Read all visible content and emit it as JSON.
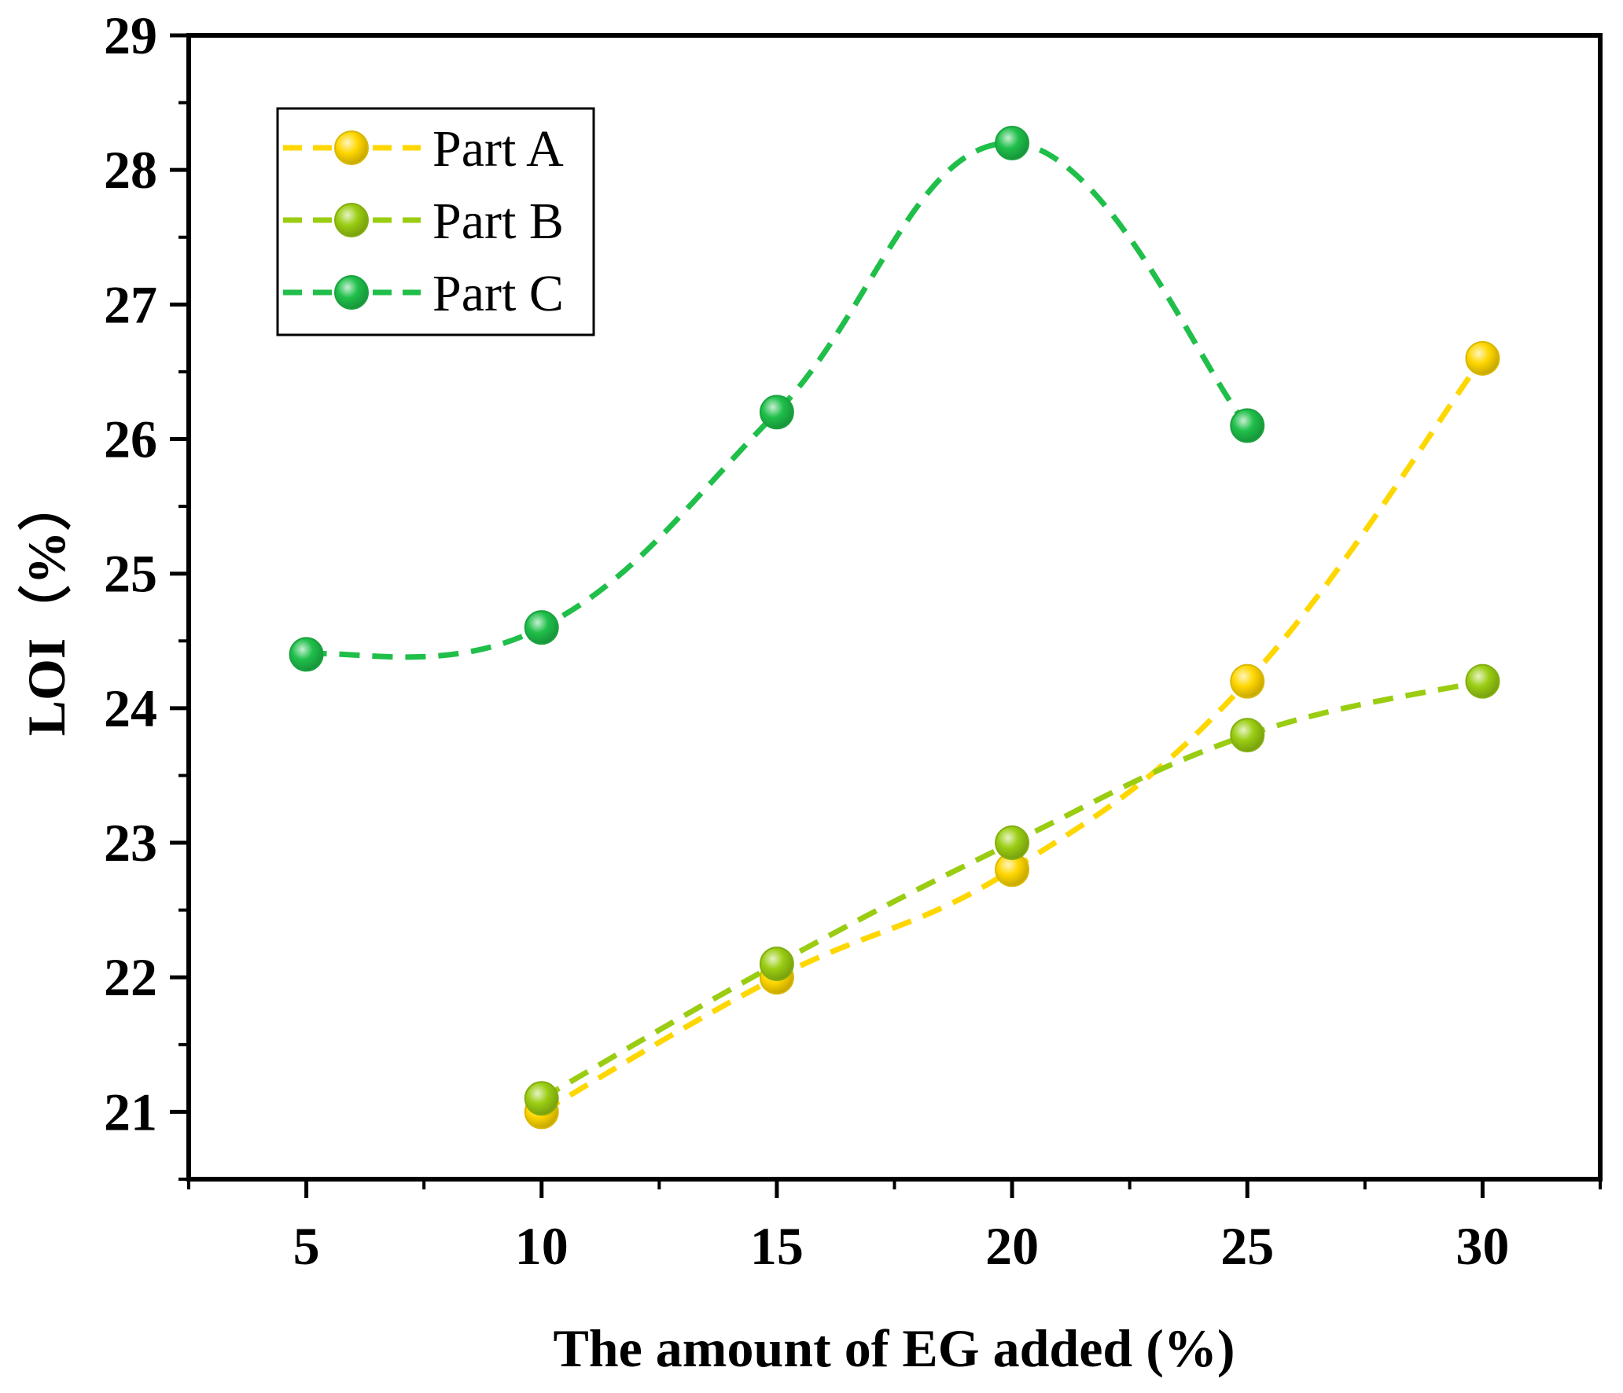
{
  "chart_data": {
    "type": "line",
    "title": "",
    "xlabel": "The amount of EG added (%)",
    "ylabel": "LOI（%）",
    "xlim": [
      2.5,
      32.5
    ],
    "ylim": [
      20.5,
      29
    ],
    "x_ticks": [
      5,
      10,
      15,
      20,
      25,
      30
    ],
    "x_tick_labels": [
      "5",
      "10",
      "15",
      "20",
      "25",
      "30"
    ],
    "y_ticks": [
      21,
      22,
      23,
      24,
      25,
      26,
      27,
      28,
      29
    ],
    "y_tick_labels": [
      "21",
      "22",
      "23",
      "24",
      "25",
      "26",
      "27",
      "28",
      "29"
    ],
    "grid": false,
    "legend_position": "top-left",
    "series": [
      {
        "name": "Part A",
        "color": "#FFD700",
        "x": [
          10,
          15,
          20,
          25,
          30
        ],
        "values": [
          21.0,
          22.0,
          22.8,
          24.2,
          26.6
        ]
      },
      {
        "name": "Part B",
        "color": "#9ACD12",
        "x": [
          10,
          15,
          20,
          25,
          30
        ],
        "values": [
          21.1,
          22.1,
          23.0,
          23.8,
          24.2
        ]
      },
      {
        "name": "Part C",
        "color": "#1FBF4A",
        "x": [
          5,
          10,
          15,
          20,
          25
        ],
        "values": [
          24.4,
          24.6,
          26.2,
          28.2,
          26.1
        ]
      }
    ]
  }
}
